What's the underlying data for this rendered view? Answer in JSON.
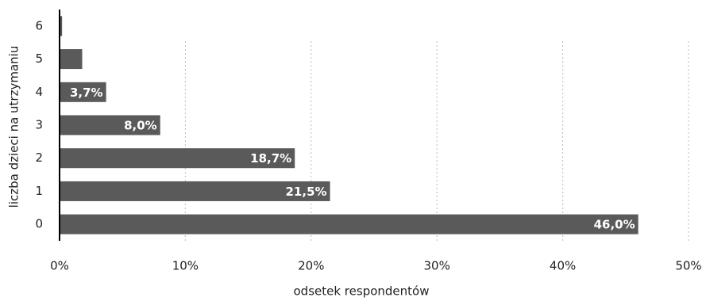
{
  "chart_data": {
    "type": "bar",
    "orientation": "horizontal",
    "x_label": "odsetek respondentów",
    "y_label": "liczba dzieci na utrzymaniu",
    "categories": [
      "0",
      "1",
      "2",
      "3",
      "4",
      "5",
      "6"
    ],
    "values": [
      46.0,
      21.5,
      18.7,
      8.0,
      3.7,
      1.8,
      0.2
    ],
    "value_labels": [
      "46,0%",
      "21,5%",
      "18,7%",
      "8,0%",
      "3,7%",
      null,
      null
    ],
    "color": "#5a5a5a",
    "xlim": [
      0,
      50
    ],
    "xticks": [
      {
        "value": 0,
        "label": "0%"
      },
      {
        "value": 10,
        "label": "10%"
      },
      {
        "value": 20,
        "label": "20%"
      },
      {
        "value": 30,
        "label": "30%"
      },
      {
        "value": 40,
        "label": "40%"
      },
      {
        "value": 50,
        "label": "50%"
      }
    ],
    "grid": true
  }
}
